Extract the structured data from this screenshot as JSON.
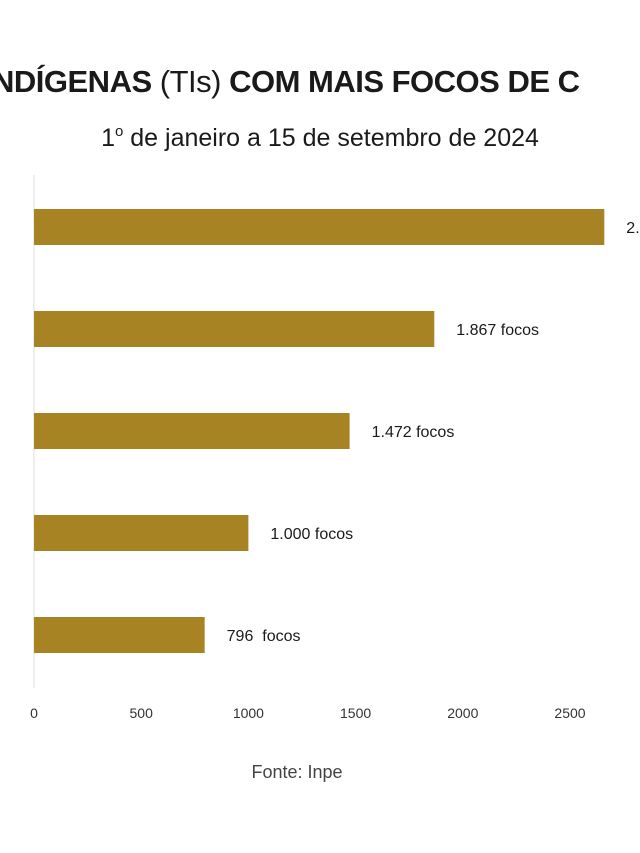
{
  "title": {
    "part1": "NDÍGENAS",
    "part2": " (TIs) ",
    "part3": "COM MAIS FOCOS DE C"
  },
  "subtitle": {
    "ordinal": "1",
    "ordinal_sup": "o",
    "rest": " de janeiro a 15 de setembro de 2024"
  },
  "source": "Fonte: Inpe",
  "colors": {
    "bar": "#a88324",
    "axis": "#dddddd",
    "text": "#1a1a1a"
  },
  "chart_data": {
    "type": "bar",
    "orientation": "horizontal",
    "values": [
      2660,
      1867,
      1472,
      1000,
      796
    ],
    "data_labels": [
      "2.",
      "1.867 focos",
      "1.472 focos",
      "1.000 focos",
      "796  focos"
    ],
    "xlim": [
      0,
      2750
    ],
    "xticks": [
      0,
      500,
      1000,
      1500,
      2000,
      2500
    ],
    "xtick_labels": [
      "0",
      "500",
      "1000",
      "1500",
      "2000",
      "2500"
    ],
    "grid": false
  }
}
